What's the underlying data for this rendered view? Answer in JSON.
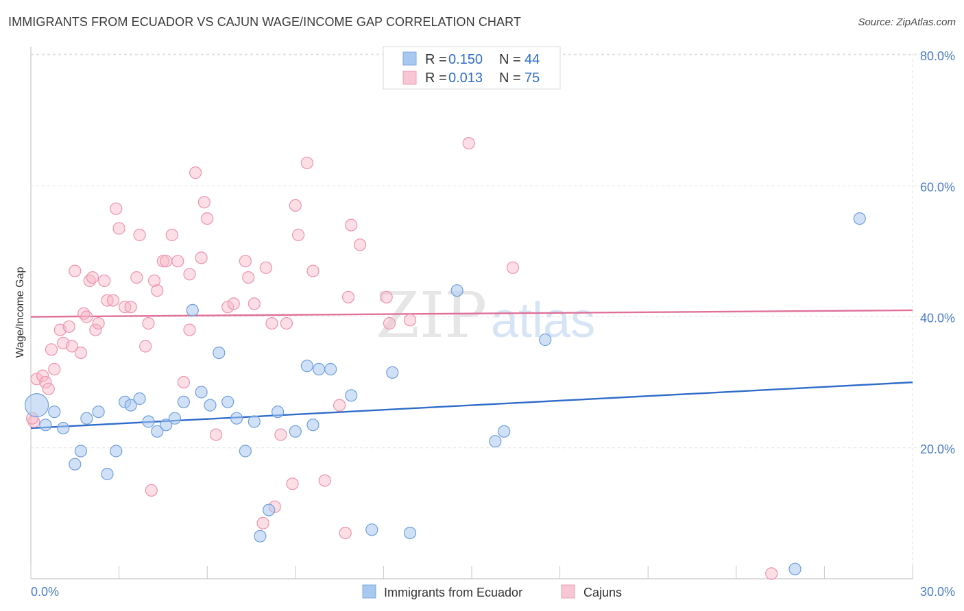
{
  "header": {
    "title": "IMMIGRANTS FROM ECUADOR VS CAJUN WAGE/INCOME GAP CORRELATION CHART",
    "source": "Source: ZipAtlas.com"
  },
  "watermark": {
    "zip": "ZIP",
    "atlas": "atlas"
  },
  "legend": {
    "r_label": "R =",
    "n_label": "N =",
    "rows": [
      {
        "r": "0.150",
        "n": "44",
        "color": "#a9c8f0"
      },
      {
        "r": "0.013",
        "n": "75",
        "color": "#f7b6c8"
      }
    ]
  },
  "bottom_legend": [
    "Immigrants from Ecuador",
    "Cajuns"
  ],
  "chart_data": {
    "type": "scatter",
    "title": "IMMIGRANTS FROM ECUADOR VS CAJUN WAGE/INCOME GAP CORRELATION CHART",
    "ylabel": "Wage/Income Gap",
    "xlim": [
      0,
      30
    ],
    "ylim": [
      0,
      80
    ],
    "x_tick_labels": [
      "0.0%",
      "30.0%"
    ],
    "y_ticks": [
      20,
      40,
      60,
      80
    ],
    "y_tick_labels": [
      "20.0%",
      "40.0%",
      "60.0%",
      "80.0%"
    ],
    "grid": true,
    "colors": {
      "ecuador": "#2f6cc9",
      "ecuador_fill": "#a9c8f0",
      "cajun": "#e0709a",
      "cajun_fill": "#f7b6c8"
    },
    "series": [
      {
        "name": "Immigrants from Ecuador",
        "trend": {
          "x": [
            0,
            30
          ],
          "y": [
            23.0,
            30.0
          ]
        },
        "points": [
          [
            0.2,
            26.5
          ],
          [
            0.5,
            23.5
          ],
          [
            0.8,
            25.5
          ],
          [
            1.1,
            23.0
          ],
          [
            1.5,
            17.5
          ],
          [
            1.7,
            19.5
          ],
          [
            1.9,
            24.5
          ],
          [
            2.3,
            25.5
          ],
          [
            2.6,
            16.0
          ],
          [
            2.9,
            19.5
          ],
          [
            3.2,
            27.0
          ],
          [
            3.4,
            26.5
          ],
          [
            3.7,
            27.5
          ],
          [
            4.0,
            24.0
          ],
          [
            4.3,
            22.5
          ],
          [
            4.6,
            23.5
          ],
          [
            4.9,
            24.5
          ],
          [
            5.2,
            27.0
          ],
          [
            5.5,
            41.0
          ],
          [
            5.8,
            28.5
          ],
          [
            6.1,
            26.5
          ],
          [
            6.4,
            34.5
          ],
          [
            6.7,
            27.0
          ],
          [
            7.0,
            24.5
          ],
          [
            7.3,
            19.5
          ],
          [
            7.6,
            24.0
          ],
          [
            7.8,
            6.5
          ],
          [
            8.1,
            10.5
          ],
          [
            8.4,
            25.5
          ],
          [
            9.0,
            22.5
          ],
          [
            9.4,
            32.5
          ],
          [
            9.6,
            23.5
          ],
          [
            9.8,
            32.0
          ],
          [
            10.2,
            32.0
          ],
          [
            10.9,
            28.0
          ],
          [
            11.6,
            7.5
          ],
          [
            12.3,
            31.5
          ],
          [
            12.9,
            7.0
          ],
          [
            14.5,
            44.0
          ],
          [
            15.8,
            21.0
          ],
          [
            16.1,
            22.5
          ],
          [
            17.5,
            36.5
          ],
          [
            26.0,
            1.5
          ],
          [
            28.2,
            55.0
          ]
        ]
      },
      {
        "name": "Cajuns",
        "trend": {
          "x": [
            0,
            30
          ],
          "y": [
            40.0,
            41.0
          ]
        },
        "points": [
          [
            0.1,
            24.0
          ],
          [
            0.2,
            30.5
          ],
          [
            0.4,
            31.0
          ],
          [
            0.5,
            30.0
          ],
          [
            0.6,
            29.0
          ],
          [
            0.7,
            35.0
          ],
          [
            0.8,
            32.0
          ],
          [
            1.0,
            38.0
          ],
          [
            1.1,
            36.0
          ],
          [
            1.3,
            38.5
          ],
          [
            1.4,
            35.5
          ],
          [
            1.5,
            47.0
          ],
          [
            1.7,
            34.5
          ],
          [
            1.8,
            40.5
          ],
          [
            1.9,
            40.0
          ],
          [
            2.0,
            45.5
          ],
          [
            2.1,
            46.0
          ],
          [
            2.2,
            38.0
          ],
          [
            2.3,
            39.0
          ],
          [
            2.5,
            45.5
          ],
          [
            2.6,
            42.5
          ],
          [
            2.8,
            42.5
          ],
          [
            2.9,
            56.5
          ],
          [
            3.0,
            53.5
          ],
          [
            3.2,
            41.5
          ],
          [
            3.4,
            41.5
          ],
          [
            3.6,
            46.0
          ],
          [
            3.7,
            52.5
          ],
          [
            3.9,
            35.5
          ],
          [
            4.0,
            39.0
          ],
          [
            4.1,
            13.5
          ],
          [
            4.2,
            45.5
          ],
          [
            4.3,
            44.0
          ],
          [
            4.5,
            48.5
          ],
          [
            4.6,
            48.5
          ],
          [
            4.8,
            52.5
          ],
          [
            5.0,
            48.5
          ],
          [
            5.2,
            30.0
          ],
          [
            5.4,
            46.5
          ],
          [
            5.4,
            38.0
          ],
          [
            5.6,
            62.0
          ],
          [
            5.8,
            49.0
          ],
          [
            5.9,
            57.5
          ],
          [
            6.0,
            55.0
          ],
          [
            6.3,
            22.0
          ],
          [
            6.7,
            41.5
          ],
          [
            6.9,
            42.0
          ],
          [
            7.3,
            48.5
          ],
          [
            7.4,
            46.0
          ],
          [
            7.6,
            42.0
          ],
          [
            7.9,
            8.5
          ],
          [
            8.0,
            47.5
          ],
          [
            8.2,
            39.0
          ],
          [
            8.3,
            11.0
          ],
          [
            8.5,
            22.0
          ],
          [
            8.7,
            39.0
          ],
          [
            8.9,
            14.5
          ],
          [
            9.0,
            57.0
          ],
          [
            9.1,
            52.5
          ],
          [
            9.4,
            63.5
          ],
          [
            9.6,
            47.0
          ],
          [
            10.0,
            15.0
          ],
          [
            10.5,
            26.5
          ],
          [
            10.7,
            7.0
          ],
          [
            10.8,
            43.0
          ],
          [
            10.9,
            54.0
          ],
          [
            11.2,
            51.0
          ],
          [
            12.1,
            43.0
          ],
          [
            12.2,
            39.0
          ],
          [
            12.9,
            39.5
          ],
          [
            14.9,
            66.5
          ],
          [
            16.4,
            47.5
          ],
          [
            17.4,
            80.0
          ],
          [
            25.2,
            0.8
          ],
          [
            0.05,
            24.5
          ]
        ]
      }
    ]
  }
}
